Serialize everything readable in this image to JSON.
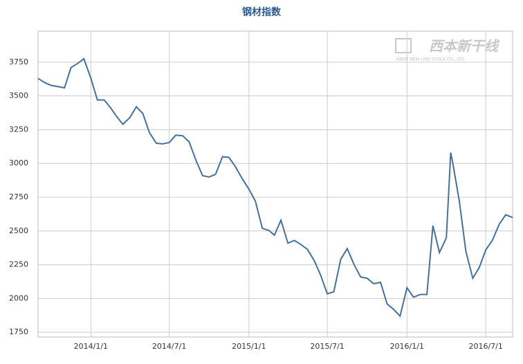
{
  "chart_data": {
    "type": "line",
    "title": "钢材指数",
    "watermark": "西本新干线",
    "watermark_sub": "XIBEN NEW LINE STOCK CO., LTD.",
    "x": [
      "2013/9/1",
      "2013/9/16",
      "2013/10/1",
      "2013/10/16",
      "2013/11/1",
      "2013/11/16",
      "2013/12/1",
      "2013/12/16",
      "2014/1/1",
      "2014/1/16",
      "2014/2/1",
      "2014/2/16",
      "2014/3/1",
      "2014/3/16",
      "2014/4/1",
      "2014/4/16",
      "2014/5/1",
      "2014/5/16",
      "2014/6/1",
      "2014/6/16",
      "2014/7/1",
      "2014/7/16",
      "2014/8/1",
      "2014/8/16",
      "2014/9/1",
      "2014/9/16",
      "2014/10/1",
      "2014/10/16",
      "2014/11/1",
      "2014/11/16",
      "2014/12/1",
      "2014/12/16",
      "2015/1/1",
      "2015/1/16",
      "2015/2/1",
      "2015/2/16",
      "2015/3/1",
      "2015/3/16",
      "2015/4/1",
      "2015/4/16",
      "2015/5/1",
      "2015/5/16",
      "2015/6/1",
      "2015/6/16",
      "2015/7/1",
      "2015/7/16",
      "2015/8/1",
      "2015/8/16",
      "2015/9/1",
      "2015/9/16",
      "2015/10/1",
      "2015/10/16",
      "2015/11/1",
      "2015/11/16",
      "2015/12/1",
      "2015/12/16",
      "2016/1/1",
      "2016/1/16",
      "2016/2/1",
      "2016/2/16",
      "2016/3/1",
      "2016/3/16",
      "2016/4/1",
      "2016/4/11",
      "2016/4/16",
      "2016/5/1",
      "2016/5/16",
      "2016/6/1",
      "2016/6/16",
      "2016/7/1",
      "2016/7/16",
      "2016/8/1",
      "2016/8/16",
      "2016/9/1"
    ],
    "series": [
      {
        "name": "钢材指数",
        "color": "#44709d",
        "values": [
          3630,
          3600,
          3578,
          3570,
          3560,
          3710,
          3740,
          3775,
          3630,
          3470,
          3470,
          3410,
          3350,
          3290,
          3340,
          3420,
          3370,
          3230,
          3150,
          3145,
          3155,
          3210,
          3205,
          3160,
          3020,
          2910,
          2900,
          2920,
          3050,
          3045,
          2975,
          2890,
          2810,
          2720,
          2520,
          2504,
          2470,
          2580,
          2410,
          2430,
          2400,
          2365,
          2280,
          2170,
          2035,
          2050,
          2290,
          2370,
          2250,
          2160,
          2150,
          2110,
          2120,
          1960,
          1920,
          1870,
          2080,
          2010,
          2030,
          2030,
          2540,
          2340,
          2450,
          3080,
          3000,
          2720,
          2350,
          2150,
          2230,
          2360,
          2430,
          2550,
          2620,
          2600
        ]
      }
    ],
    "xlim": [
      "2013/9/1",
      "2016/9/1"
    ],
    "xticks": [
      "2014/1/1",
      "2014/7/1",
      "2015/1/1",
      "2015/7/1",
      "2016/1/1",
      "2016/7/1"
    ],
    "ylim": [
      1715,
      3980
    ],
    "yticks": [
      1750,
      2000,
      2250,
      2500,
      2750,
      3000,
      3250,
      3500,
      3750
    ],
    "grid": true
  }
}
